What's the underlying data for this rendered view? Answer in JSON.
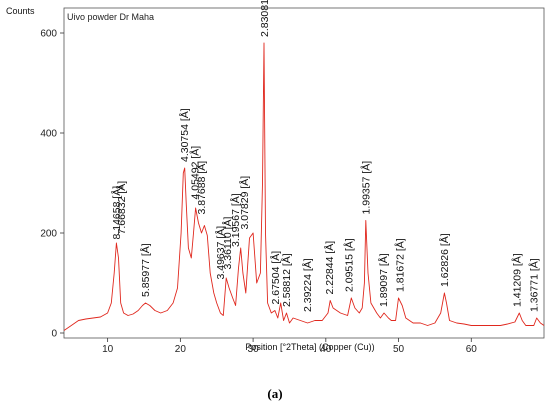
{
  "chart_data": {
    "type": "line",
    "title": "Uivo powder Dr Maha",
    "ylabel": "Counts",
    "xlabel": "Position [°2Theta] (Copper (Cu))",
    "caption": "(a)",
    "xlim": [
      4,
      70
    ],
    "ylim": [
      -10,
      650
    ],
    "xticks": [
      10,
      20,
      30,
      40,
      50,
      60
    ],
    "yticks": [
      0,
      200,
      400,
      600
    ],
    "line_color": "#e0281e",
    "grid": false,
    "x": [
      4,
      5,
      6,
      7,
      8,
      9,
      10,
      10.5,
      10.9,
      11.2,
      11.5,
      11.8,
      12.2,
      12.8,
      13.5,
      14.2,
      14.8,
      15.2,
      15.8,
      16.5,
      17.3,
      18.2,
      19,
      19.6,
      20.1,
      20.4,
      20.6,
      20.8,
      21.1,
      21.5,
      21.8,
      22.1,
      22.5,
      22.9,
      23.3,
      23.7,
      24.1,
      24.6,
      25,
      25.5,
      25.9,
      26.3,
      26.7,
      27.2,
      27.6,
      28,
      28.3,
      28.6,
      29,
      29.5,
      30,
      30.5,
      31,
      31.3,
      31.5,
      31.7,
      32,
      32.5,
      33,
      33.4,
      33.8,
      34.2,
      34.6,
      35,
      35.5,
      36.5,
      37.5,
      38.5,
      39.5,
      40.3,
      40.6,
      41,
      42,
      43,
      43.5,
      44,
      44.6,
      45,
      45.3,
      45.5,
      45.8,
      46.2,
      47,
      47.5,
      48,
      48.6,
      49,
      49.6,
      50,
      50.5,
      51,
      52,
      53,
      54,
      55,
      55.8,
      56.3,
      56.6,
      57,
      58,
      59,
      60,
      61,
      62,
      63,
      64,
      65,
      66,
      66.6,
      67,
      67.5,
      68,
      68.6,
      69,
      69.5,
      70
    ],
    "y": [
      5,
      15,
      25,
      28,
      30,
      32,
      40,
      60,
      120,
      180,
      150,
      60,
      40,
      35,
      38,
      45,
      55,
      60,
      55,
      45,
      40,
      45,
      60,
      90,
      200,
      320,
      330,
      260,
      170,
      150,
      200,
      250,
      220,
      200,
      215,
      195,
      120,
      80,
      60,
      40,
      35,
      110,
      90,
      70,
      55,
      130,
      170,
      120,
      80,
      190,
      200,
      100,
      120,
      300,
      580,
      200,
      60,
      40,
      45,
      30,
      60,
      25,
      40,
      20,
      30,
      25,
      20,
      25,
      25,
      40,
      65,
      50,
      40,
      35,
      70,
      50,
      40,
      50,
      100,
      225,
      120,
      60,
      40,
      30,
      40,
      30,
      25,
      25,
      70,
      55,
      30,
      20,
      20,
      15,
      20,
      40,
      80,
      60,
      25,
      20,
      18,
      15,
      15,
      15,
      15,
      15,
      18,
      22,
      40,
      25,
      15,
      15,
      15,
      30,
      20,
      15
    ],
    "peaks": [
      {
        "x": 11.2,
        "y": 175,
        "label": "8.14658 [Å]"
      },
      {
        "x": 11.9,
        "y": 185,
        "label": "7.66832 [Å]"
      },
      {
        "x": 15.2,
        "y": 60,
        "label": "5.85977 [Å]"
      },
      {
        "x": 20.6,
        "y": 330,
        "label": "4.30754 [Å]"
      },
      {
        "x": 22.0,
        "y": 255,
        "label": "4.05492 [Å]"
      },
      {
        "x": 22.9,
        "y": 225,
        "label": "3.87688 [Å]"
      },
      {
        "x": 25.5,
        "y": 95,
        "label": "3.49637 [Å]"
      },
      {
        "x": 26.5,
        "y": 115,
        "label": "3.36110 [Å]"
      },
      {
        "x": 27.6,
        "y": 160,
        "label": "3.19567 [Å]"
      },
      {
        "x": 28.8,
        "y": 195,
        "label": "3.07829 [Å]"
      },
      {
        "x": 31.6,
        "y": 580,
        "label": "2.83081 [Å]"
      },
      {
        "x": 33.1,
        "y": 45,
        "label": "2.67504 [Å]"
      },
      {
        "x": 34.6,
        "y": 40,
        "label": "2.58812 [Å]"
      },
      {
        "x": 37.5,
        "y": 30,
        "label": "2.39224 [Å]"
      },
      {
        "x": 40.5,
        "y": 65,
        "label": "2.22844 [Å]"
      },
      {
        "x": 43.2,
        "y": 70,
        "label": "2.09515 [Å]"
      },
      {
        "x": 45.5,
        "y": 225,
        "label": "1.99357 [Å]"
      },
      {
        "x": 47.9,
        "y": 40,
        "label": "1.89097 [Å]"
      },
      {
        "x": 50.2,
        "y": 70,
        "label": "1.81672 [Å]"
      },
      {
        "x": 56.3,
        "y": 80,
        "label": "1.62826 [Å]"
      },
      {
        "x": 66.3,
        "y": 40,
        "label": "1.41209 [Å]"
      },
      {
        "x": 68.6,
        "y": 30,
        "label": "1.36771 [Å]"
      }
    ]
  }
}
